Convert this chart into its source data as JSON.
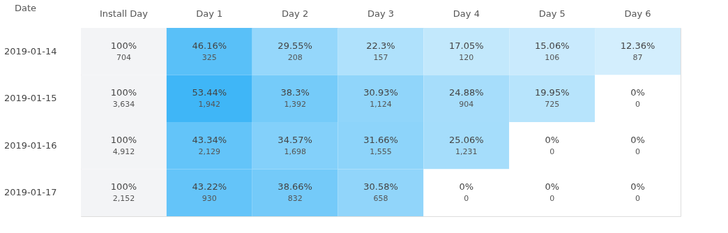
{
  "chart_data": {
    "type": "heatmap",
    "ylabel": "Date",
    "categories": [
      "Install Day",
      "Day 1",
      "Day 2",
      "Day 3",
      "Day 4",
      "Day 5",
      "Day 6"
    ],
    "y_categories": [
      "2019-01-14",
      "2019-01-15",
      "2019-01-16",
      "2019-01-17"
    ],
    "cells": [
      [
        100,
        46.16,
        29.55,
        22.3,
        17.05,
        15.06,
        12.36
      ],
      [
        100,
        53.44,
        38.3,
        30.93,
        24.88,
        19.95,
        0
      ],
      [
        100,
        43.34,
        34.57,
        31.66,
        25.06,
        0,
        0
      ],
      [
        100,
        43.22,
        38.66,
        30.58,
        0,
        0,
        0
      ]
    ],
    "cell_labels": [
      [
        "100%",
        "46.16%",
        "29.55%",
        "22.3%",
        "17.05%",
        "15.06%",
        "12.36%"
      ],
      [
        "100%",
        "53.44%",
        "38.3%",
        "30.93%",
        "24.88%",
        "19.95%",
        "0%"
      ],
      [
        "100%",
        "43.34%",
        "34.57%",
        "31.66%",
        "25.06%",
        "0%",
        "0%"
      ],
      [
        "100%",
        "43.22%",
        "38.66%",
        "30.58%",
        "0%",
        "0%",
        "0%"
      ]
    ],
    "annotations": [
      "704",
      "325",
      "208",
      "157",
      "120",
      "106",
      "87",
      "3,634",
      "1,942",
      "1,392",
      "1,124",
      "904",
      "725",
      "0",
      "4,912",
      "2,129",
      "1,698",
      "1,555",
      "1,231",
      "0",
      "0",
      "2,152",
      "930",
      "832",
      "658",
      "0",
      "0",
      "0"
    ]
  }
}
